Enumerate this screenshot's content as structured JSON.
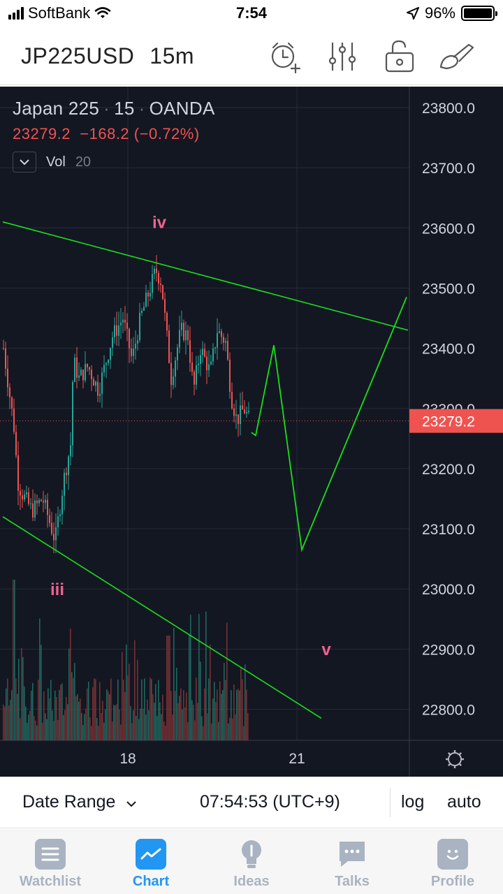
{
  "status_bar": {
    "carrier": "SoftBank",
    "time": "7:54",
    "battery": "96%"
  },
  "header": {
    "symbol": "JP225USD",
    "timeframe": "15m",
    "icons": [
      "alarm-add-icon",
      "indicators-icon",
      "unlock-icon",
      "drawing-tool-icon"
    ]
  },
  "legend": {
    "title_name": "Japan 225",
    "title_interval": "15",
    "title_source": "OANDA",
    "price": "23279.2",
    "change": "−168.2",
    "change_pct": "(−0.72%)",
    "vol_label": "Vol",
    "vol_length": "20"
  },
  "colors": {
    "bg": "#131722",
    "up": "#26a69a",
    "down": "#ef5350",
    "annotation": "#f06292",
    "drawing": "#19e01b",
    "price_label_bg": "#ef5350"
  },
  "chart_data": {
    "type": "candlestick",
    "symbol": "JP225USD",
    "y_axis_ticks": [
      "23800.0",
      "23700.0",
      "23600.0",
      "23500.0",
      "23400.0",
      "23300.0",
      "23200.0",
      "23100.0",
      "23000.0",
      "22900.0",
      "22800.0"
    ],
    "x_axis_ticks": [
      "18",
      "21"
    ],
    "current_price": "23279.2",
    "wave_labels": [
      {
        "text": "iv",
        "price": 23600
      },
      {
        "text": "iii",
        "price": 22990
      },
      {
        "text": "v",
        "price": 22890
      }
    ],
    "trendlines": [
      {
        "from": 23610,
        "to": 23430
      },
      {
        "from": 23120,
        "to": 22785
      }
    ],
    "projection_path_prices": [
      23260,
      23255,
      23405,
      23065,
      23485
    ]
  },
  "bottom_bar": {
    "date_range": "Date Range",
    "clock": "07:54:53 (UTC+9)",
    "log": "log",
    "auto": "auto"
  },
  "tabs": [
    {
      "label": "Watchlist",
      "icon": "list-icon",
      "active": false
    },
    {
      "label": "Chart",
      "icon": "chart-icon",
      "active": true
    },
    {
      "label": "Ideas",
      "icon": "lightbulb-icon",
      "active": false
    },
    {
      "label": "Talks",
      "icon": "chat-bubble-icon",
      "active": false
    },
    {
      "label": "Profile",
      "icon": "smiley-icon",
      "active": false
    }
  ]
}
